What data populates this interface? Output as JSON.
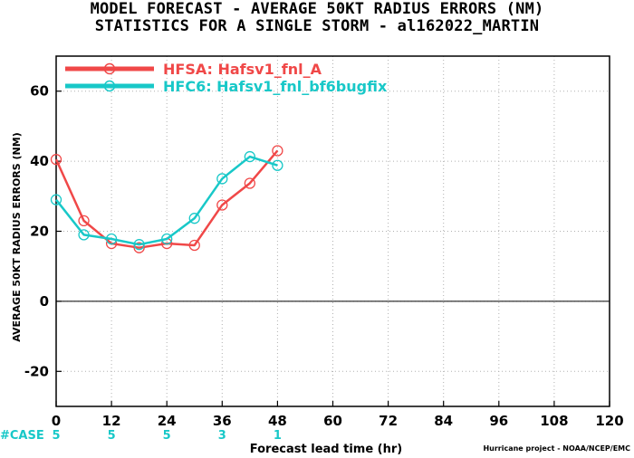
{
  "figure": {
    "title_line1": "MODEL FORECAST - AVERAGE 50KT RADIUS ERRORS (NM)",
    "title_line2": "STATISTICS FOR A SINGLE STORM - al162022_MARTIN",
    "credit": "Hurricane project - NOAA/NCEP/EMC",
    "case_label": "#CASE"
  },
  "chart_data": {
    "type": "line",
    "xlabel": "Forecast lead time (hr)",
    "ylabel": "AVERAGE 50KT RADIUS ERRORS (NM)",
    "xlim": [
      0,
      120
    ],
    "ylim": [
      -30,
      70
    ],
    "xticks": [
      "0",
      "12",
      "24",
      "36",
      "48",
      "60",
      "72",
      "84",
      "96",
      "108",
      "120"
    ],
    "yticks": [
      "-20",
      "0",
      "20",
      "40",
      "60"
    ],
    "grid": true,
    "legend_position": "top-left",
    "series": [
      {
        "name": "HFSA: Hafsv1_fnl_A",
        "color": "#f04848",
        "x": [
          0,
          6,
          12,
          18,
          24,
          30,
          36,
          42,
          48
        ],
        "y": [
          40.5,
          23.0,
          16.5,
          15.3,
          16.5,
          16.0,
          27.5,
          33.7,
          43.0
        ]
      },
      {
        "name": "HFC6: Hafsv1_fnl_bf6bugfix",
        "color": "#18c8c8",
        "x": [
          0,
          6,
          12,
          18,
          24,
          30,
          36,
          42,
          48
        ],
        "y": [
          29.0,
          19.0,
          17.8,
          16.2,
          17.8,
          23.7,
          35.0,
          41.3,
          38.8
        ]
      }
    ],
    "cases": {
      "color": "#18c8c8",
      "x": [
        0,
        12,
        24,
        36,
        48
      ],
      "labels": [
        "5",
        "5",
        "5",
        "3",
        "1"
      ]
    }
  }
}
